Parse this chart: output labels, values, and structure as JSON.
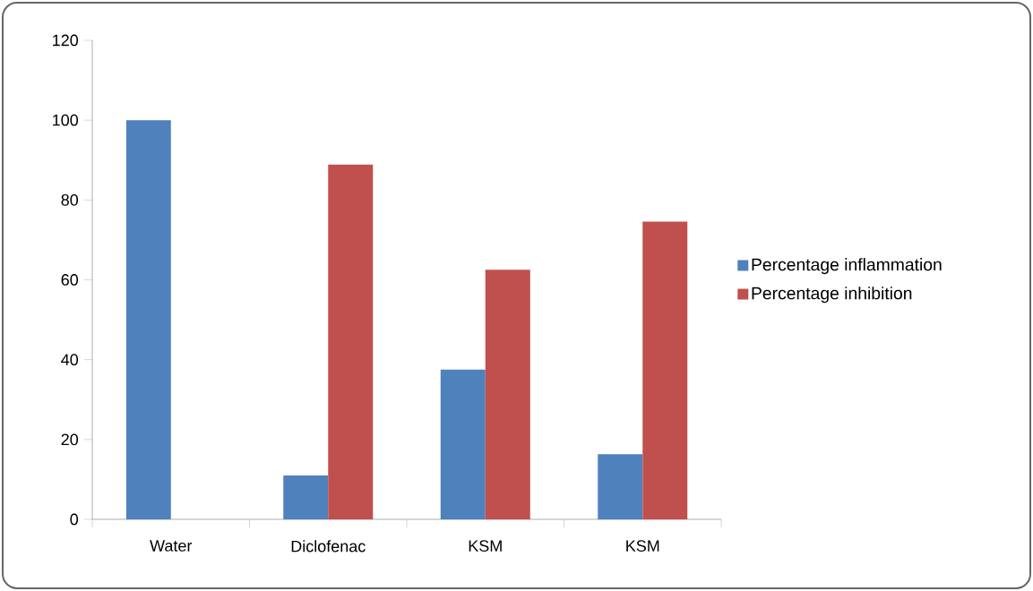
{
  "chart_data": {
    "type": "bar",
    "categories": [
      "Water",
      "Diclofenac",
      "KSM",
      "KSM"
    ],
    "series": [
      {
        "name": "Percentage inflammation",
        "color": "#4f81bd",
        "values": [
          100,
          11,
          37.5,
          16.3
        ]
      },
      {
        "name": "Percentage inhibition",
        "color": "#c0504d",
        "values": [
          null,
          88.9,
          62.5,
          74.6
        ]
      }
    ],
    "ylim": [
      0,
      120
    ],
    "yticks": [
      0,
      20,
      40,
      60,
      80,
      100,
      120
    ],
    "grid": false,
    "legend": "right"
  }
}
